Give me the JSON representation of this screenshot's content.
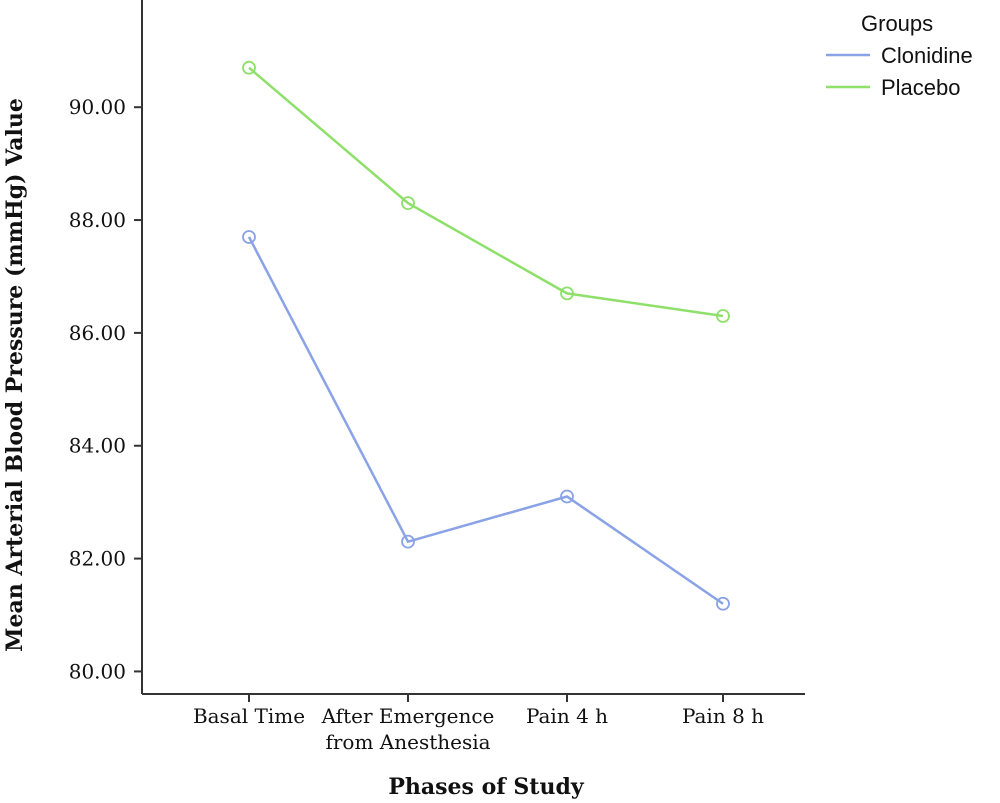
{
  "chart_data": {
    "type": "line",
    "xlabel": "Phases of Study",
    "ylabel": "Mean Arterial Blood Pressure (mmHg) Value",
    "categories": [
      [
        "Basal Time"
      ],
      [
        "After Emergence",
        "from Anesthesia"
      ],
      [
        "Pain 4 h"
      ],
      [
        "Pain 8 h"
      ]
    ],
    "yticks": [
      "80.00",
      "82.00",
      "84.00",
      "86.00",
      "88.00",
      "90.00"
    ],
    "ylim": [
      79.6,
      91.9
    ],
    "grid": false,
    "legend": {
      "title": "Groups",
      "position": "top-right"
    },
    "series": [
      {
        "name": "Clonidine",
        "color": "#8aa2e6",
        "values": [
          87.7,
          82.3,
          83.1,
          81.2
        ]
      },
      {
        "name": "Placebo",
        "color": "#8ee06a",
        "values": [
          90.7,
          88.3,
          86.7,
          86.3
        ]
      }
    ]
  }
}
